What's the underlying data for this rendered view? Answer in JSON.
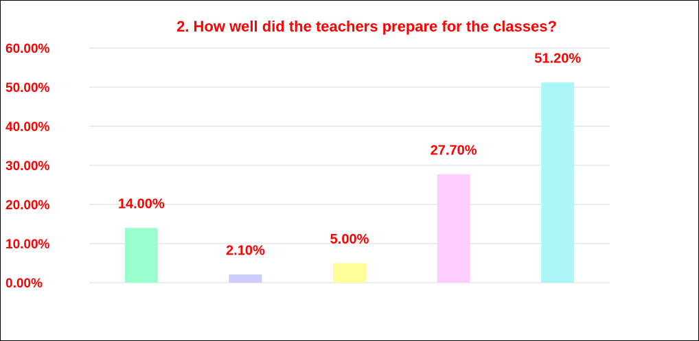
{
  "chart_data": {
    "type": "bar",
    "title": "2. How well did the teachers prepare for the classes?",
    "categories": [
      null,
      null,
      null,
      null,
      null
    ],
    "values": [
      14.0,
      2.1,
      5.0,
      27.7,
      51.2
    ],
    "value_labels": [
      "14.00%",
      "2.10%",
      "5.00%",
      "27.70%",
      "51.20%"
    ],
    "colors": [
      "#99ffcc",
      "#ccccff",
      "#ffff99",
      "#ffccff",
      "#aaf6f8"
    ],
    "ylim": [
      0,
      60
    ],
    "yticks": [
      {
        "value": 0,
        "label": "0.00%"
      },
      {
        "value": 10,
        "label": "10.00%"
      },
      {
        "value": 20,
        "label": "20.00%"
      },
      {
        "value": 30,
        "label": "30.00%"
      },
      {
        "value": 40,
        "label": "40.00%"
      },
      {
        "value": 50,
        "label": "50.00%"
      },
      {
        "value": 60,
        "label": "60.00%"
      }
    ],
    "grid": true
  }
}
